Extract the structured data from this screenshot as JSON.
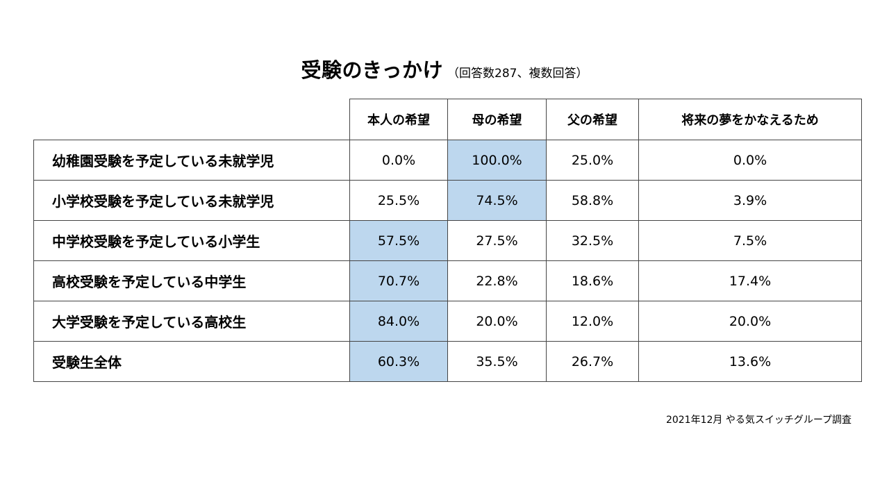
{
  "title": "受験のきっかけ",
  "subtitle": "（回答数287、複数回答）",
  "source": "2021年12月 やる気スイッチグループ調査",
  "highlight_color": "#bdd7ee",
  "chart_data": {
    "type": "table",
    "title": "受験のきっかけ",
    "subtitle": "（回答数287、複数回答）",
    "columns": [
      "本人の希望",
      "母の希望",
      "父の希望",
      "将来の夢をかなえるため"
    ],
    "rows": [
      {
        "label": "幼稚園受験を予定している未就学児",
        "display": [
          "0.0%",
          "100.0%",
          "25.0%",
          "0.0%"
        ],
        "values": [
          0.0,
          100.0,
          25.0,
          0.0
        ],
        "highlighted_column": 1
      },
      {
        "label": "小学校受験を予定している未就学児",
        "display": [
          "25.5%",
          "74.5%",
          "58.8%",
          "3.9%"
        ],
        "values": [
          25.5,
          74.5,
          58.8,
          3.9
        ],
        "highlighted_column": 1
      },
      {
        "label": "中学校受験を予定している小学生",
        "display": [
          "57.5%",
          "27.5%",
          "32.5%",
          "7.5%"
        ],
        "values": [
          57.5,
          27.5,
          32.5,
          7.5
        ],
        "highlighted_column": 0
      },
      {
        "label": "高校受験を予定している中学生",
        "display": [
          "70.7%",
          "22.8%",
          "18.6%",
          "17.4%"
        ],
        "values": [
          70.7,
          22.8,
          18.6,
          17.4
        ],
        "highlighted_column": 0
      },
      {
        "label": "大学受験を予定している高校生",
        "display": [
          "84.0%",
          "20.0%",
          "12.0%",
          "20.0%"
        ],
        "values": [
          84.0,
          20.0,
          12.0,
          20.0
        ],
        "highlighted_column": 0
      },
      {
        "label": "受験生全体",
        "display": [
          "60.3%",
          "35.5%",
          "26.7%",
          "13.6%"
        ],
        "values": [
          60.3,
          35.5,
          26.7,
          13.6
        ],
        "highlighted_column": 0
      }
    ]
  }
}
